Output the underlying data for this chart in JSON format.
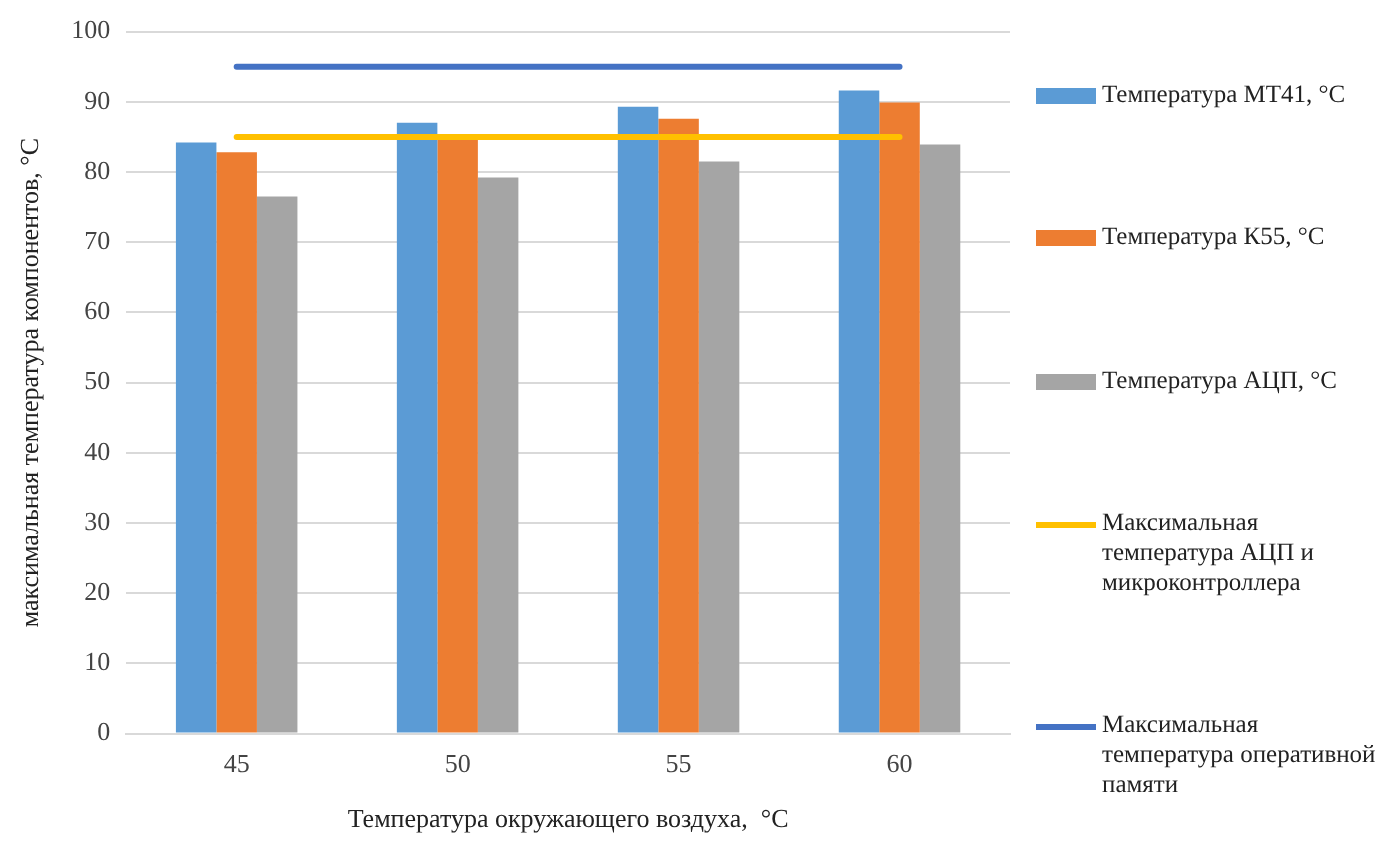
{
  "chart_data": {
    "type": "bar",
    "xlabel": "Температура окружающего воздуха,  °С",
    "ylabel": "максимальная температура компонентов, °С",
    "categories": [
      "45",
      "50",
      "55",
      "60"
    ],
    "series": [
      {
        "name": "Температура МТ41, °С",
        "color": "#5b9bd5",
        "values": [
          84.2,
          87.0,
          89.3,
          91.6
        ]
      },
      {
        "name": "Температура К55, °С",
        "color": "#ed7d31",
        "values": [
          82.8,
          84.9,
          87.6,
          89.9
        ]
      },
      {
        "name": "Температура АЦП, °С",
        "color": "#a5a5a5",
        "values": [
          76.5,
          79.2,
          81.5,
          83.9
        ]
      },
      {
        "name": "Максимальная температура АЦП и микроконтроллера",
        "type": "line",
        "color": "#ffc000",
        "values": [
          85,
          85,
          85,
          85
        ]
      },
      {
        "name": "Максимальная температура оперативной памяти",
        "type": "line",
        "color": "#4472c4",
        "values": [
          95,
          95,
          95,
          95
        ]
      }
    ],
    "ylim": [
      0,
      100
    ],
    "yticks": [
      0,
      10,
      20,
      30,
      40,
      50,
      60,
      70,
      80,
      90,
      100
    ],
    "grid": "y",
    "legend": "right",
    "marker": "none"
  }
}
